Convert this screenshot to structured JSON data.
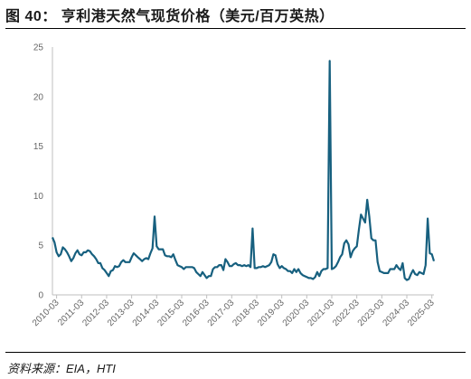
{
  "title": "图 40：  亨利港天然气现货价格（美元/百万英热）",
  "source": "资料来源：EIA，HTI",
  "colors": {
    "series": "#17607f",
    "axis": "#bfbfbf",
    "tick_text": "#666666"
  },
  "chart_data": {
    "type": "line",
    "title": "亨利港天然气现货价格（美元/百万英热）",
    "xlabel": "",
    "ylabel": "",
    "ylim": [
      0,
      25
    ],
    "yticks": [
      0,
      5,
      10,
      15,
      20,
      25
    ],
    "xlim": [
      "2010-01",
      "2025-04"
    ],
    "xticks": [
      "2010-03",
      "2011-03",
      "2012-03",
      "2013-03",
      "2014-03",
      "2015-03",
      "2016-03",
      "2017-03",
      "2018-03",
      "2019-03",
      "2020-03",
      "2021-03",
      "2022-03",
      "2023-03",
      "2024-03",
      "2025-03"
    ],
    "grid": false,
    "legend": "none",
    "series": [
      {
        "name": "",
        "points": [
          [
            "2010-01",
            5.8
          ],
          [
            "2010-02",
            5.3
          ],
          [
            "2010-03",
            4.3
          ],
          [
            "2010-04",
            3.9
          ],
          [
            "2010-05",
            4.1
          ],
          [
            "2010-06",
            4.8
          ],
          [
            "2010-07",
            4.6
          ],
          [
            "2010-08",
            4.3
          ],
          [
            "2010-09",
            3.9
          ],
          [
            "2010-10",
            3.4
          ],
          [
            "2010-11",
            3.7
          ],
          [
            "2010-12",
            4.2
          ],
          [
            "2011-01",
            4.5
          ],
          [
            "2011-02",
            4.1
          ],
          [
            "2011-03",
            4.0
          ],
          [
            "2011-04",
            4.3
          ],
          [
            "2011-05",
            4.3
          ],
          [
            "2011-06",
            4.5
          ],
          [
            "2011-07",
            4.4
          ],
          [
            "2011-08",
            4.1
          ],
          [
            "2011-09",
            3.9
          ],
          [
            "2011-10",
            3.6
          ],
          [
            "2011-11",
            3.2
          ],
          [
            "2011-12",
            3.2
          ],
          [
            "2012-01",
            2.7
          ],
          [
            "2012-02",
            2.5
          ],
          [
            "2012-03",
            2.2
          ],
          [
            "2012-04",
            1.9
          ],
          [
            "2012-05",
            2.4
          ],
          [
            "2012-06",
            2.5
          ],
          [
            "2012-07",
            2.9
          ],
          [
            "2012-08",
            2.8
          ],
          [
            "2012-09",
            2.9
          ],
          [
            "2012-10",
            3.3
          ],
          [
            "2012-11",
            3.5
          ],
          [
            "2012-12",
            3.3
          ],
          [
            "2013-01",
            3.3
          ],
          [
            "2013-02",
            3.3
          ],
          [
            "2013-03",
            3.8
          ],
          [
            "2013-04",
            4.2
          ],
          [
            "2013-05",
            4.0
          ],
          [
            "2013-06",
            3.8
          ],
          [
            "2013-07",
            3.6
          ],
          [
            "2013-08",
            3.4
          ],
          [
            "2013-09",
            3.6
          ],
          [
            "2013-10",
            3.7
          ],
          [
            "2013-11",
            3.6
          ],
          [
            "2013-12",
            4.2
          ],
          [
            "2014-01",
            4.7
          ],
          [
            "2014-02",
            7.9
          ],
          [
            "2014-03",
            4.9
          ],
          [
            "2014-04",
            4.6
          ],
          [
            "2014-05",
            4.6
          ],
          [
            "2014-06",
            4.6
          ],
          [
            "2014-07",
            4.0
          ],
          [
            "2014-08",
            3.9
          ],
          [
            "2014-09",
            3.9
          ],
          [
            "2014-10",
            3.8
          ],
          [
            "2014-11",
            4.1
          ],
          [
            "2014-12",
            3.5
          ],
          [
            "2015-01",
            3.0
          ],
          [
            "2015-02",
            2.9
          ],
          [
            "2015-03",
            2.8
          ],
          [
            "2015-04",
            2.6
          ],
          [
            "2015-05",
            2.8
          ],
          [
            "2015-06",
            2.8
          ],
          [
            "2015-07",
            2.8
          ],
          [
            "2015-08",
            2.8
          ],
          [
            "2015-09",
            2.7
          ],
          [
            "2015-10",
            2.3
          ],
          [
            "2015-11",
            2.1
          ],
          [
            "2015-12",
            1.9
          ],
          [
            "2016-01",
            2.3
          ],
          [
            "2016-02",
            2.0
          ],
          [
            "2016-03",
            1.7
          ],
          [
            "2016-04",
            1.9
          ],
          [
            "2016-05",
            1.9
          ],
          [
            "2016-06",
            2.6
          ],
          [
            "2016-07",
            2.8
          ],
          [
            "2016-08",
            2.8
          ],
          [
            "2016-09",
            3.0
          ],
          [
            "2016-10",
            3.0
          ],
          [
            "2016-11",
            2.5
          ],
          [
            "2016-12",
            3.6
          ],
          [
            "2017-01",
            3.3
          ],
          [
            "2017-02",
            2.9
          ],
          [
            "2017-03",
            2.9
          ],
          [
            "2017-04",
            3.1
          ],
          [
            "2017-05",
            3.2
          ],
          [
            "2017-06",
            3.0
          ],
          [
            "2017-07",
            3.0
          ],
          [
            "2017-08",
            2.9
          ],
          [
            "2017-09",
            3.0
          ],
          [
            "2017-10",
            2.9
          ],
          [
            "2017-11",
            3.0
          ],
          [
            "2017-12",
            2.8
          ],
          [
            "2018-01",
            6.7
          ],
          [
            "2018-02",
            2.7
          ],
          [
            "2018-03",
            2.7
          ],
          [
            "2018-04",
            2.8
          ],
          [
            "2018-05",
            2.8
          ],
          [
            "2018-06",
            2.9
          ],
          [
            "2018-07",
            2.8
          ],
          [
            "2018-08",
            2.9
          ],
          [
            "2018-09",
            3.0
          ],
          [
            "2018-10",
            3.3
          ],
          [
            "2018-11",
            4.1
          ],
          [
            "2018-12",
            4.0
          ],
          [
            "2019-01",
            3.1
          ],
          [
            "2019-02",
            2.7
          ],
          [
            "2019-03",
            2.9
          ],
          [
            "2019-04",
            2.7
          ],
          [
            "2019-05",
            2.6
          ],
          [
            "2019-06",
            2.4
          ],
          [
            "2019-07",
            2.4
          ],
          [
            "2019-08",
            2.2
          ],
          [
            "2019-09",
            2.6
          ],
          [
            "2019-10",
            2.3
          ],
          [
            "2019-11",
            2.6
          ],
          [
            "2019-12",
            2.2
          ],
          [
            "2020-01",
            2.0
          ],
          [
            "2020-02",
            1.9
          ],
          [
            "2020-03",
            1.8
          ],
          [
            "2020-04",
            1.7
          ],
          [
            "2020-05",
            1.7
          ],
          [
            "2020-06",
            1.6
          ],
          [
            "2020-07",
            1.8
          ],
          [
            "2020-08",
            2.3
          ],
          [
            "2020-09",
            1.9
          ],
          [
            "2020-10",
            2.4
          ],
          [
            "2020-11",
            2.6
          ],
          [
            "2020-12",
            2.6
          ],
          [
            "2021-01",
            2.7
          ],
          [
            "2021-02",
            23.6
          ],
          [
            "2021-03",
            2.6
          ],
          [
            "2021-04",
            2.7
          ],
          [
            "2021-05",
            2.9
          ],
          [
            "2021-06",
            3.3
          ],
          [
            "2021-07",
            3.8
          ],
          [
            "2021-08",
            4.1
          ],
          [
            "2021-09",
            5.2
          ],
          [
            "2021-10",
            5.5
          ],
          [
            "2021-11",
            5.1
          ],
          [
            "2021-12",
            3.8
          ],
          [
            "2022-01",
            4.4
          ],
          [
            "2022-02",
            4.7
          ],
          [
            "2022-03",
            4.9
          ],
          [
            "2022-04",
            6.6
          ],
          [
            "2022-05",
            8.1
          ],
          [
            "2022-06",
            7.7
          ],
          [
            "2022-07",
            7.3
          ],
          [
            "2022-08",
            9.6
          ],
          [
            "2022-09",
            7.9
          ],
          [
            "2022-10",
            5.7
          ],
          [
            "2022-11",
            5.5
          ],
          [
            "2022-12",
            5.5
          ],
          [
            "2023-01",
            3.3
          ],
          [
            "2023-02",
            2.4
          ],
          [
            "2023-03",
            2.3
          ],
          [
            "2023-04",
            2.2
          ],
          [
            "2023-05",
            2.2
          ],
          [
            "2023-06",
            2.2
          ],
          [
            "2023-07",
            2.6
          ],
          [
            "2023-08",
            2.6
          ],
          [
            "2023-09",
            2.6
          ],
          [
            "2023-10",
            3.0
          ],
          [
            "2023-11",
            2.7
          ],
          [
            "2023-12",
            2.5
          ],
          [
            "2024-01",
            3.2
          ],
          [
            "2024-02",
            1.7
          ],
          [
            "2024-03",
            1.5
          ],
          [
            "2024-04",
            1.6
          ],
          [
            "2024-05",
            2.1
          ],
          [
            "2024-06",
            2.5
          ],
          [
            "2024-07",
            2.1
          ],
          [
            "2024-08",
            2.0
          ],
          [
            "2024-09",
            2.3
          ],
          [
            "2024-10",
            2.2
          ],
          [
            "2024-11",
            2.1
          ],
          [
            "2024-12",
            3.0
          ],
          [
            "2025-01",
            7.7
          ],
          [
            "2025-02",
            4.2
          ],
          [
            "2025-03",
            4.1
          ],
          [
            "2025-04",
            3.4
          ]
        ]
      }
    ]
  }
}
